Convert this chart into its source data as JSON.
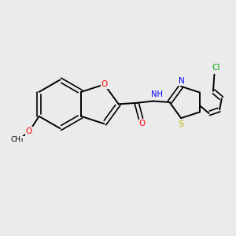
{
  "background_color": "#ebebeb",
  "bond_color": "#000000",
  "atom_colors": {
    "O": "#ff0000",
    "N": "#0000ff",
    "S": "#b8b800",
    "Cl": "#00aa00",
    "C": "#000000"
  },
  "figsize": [
    3.0,
    3.0
  ],
  "dpi": 100,
  "xlim": [
    0,
    10
  ],
  "ylim": [
    0,
    10
  ]
}
